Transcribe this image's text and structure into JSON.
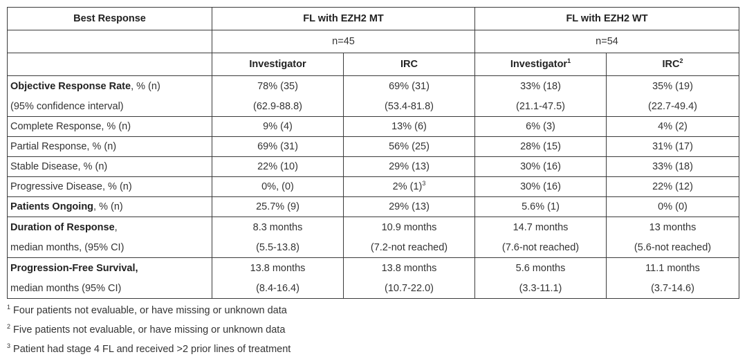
{
  "header": {
    "best_response": "Best Response",
    "group_mt": "FL with EZH2 MT",
    "group_wt": "FL with EZH2 WT",
    "n_mt": "n=45",
    "n_wt": "n=54",
    "investigator": "Investigator",
    "irc": "IRC",
    "sup_wt_investigator": "1",
    "sup_wt_irc": "2"
  },
  "rows": {
    "orr": {
      "label_bold": "Objective Response Rate",
      "label_rest": ", % (n)",
      "sublabel": "(95% confidence interval)",
      "mt_inv": "78% (35)",
      "mt_inv_ci": "(62.9-88.8)",
      "mt_irc": "69% (31)",
      "mt_irc_ci": "(53.4-81.8)",
      "wt_inv": "33% (18)",
      "wt_inv_ci": "(21.1-47.5)",
      "wt_irc": "35% (19)",
      "wt_irc_ci": "(22.7-49.4)"
    },
    "cr": {
      "label": "Complete Response, % (n)",
      "mt_inv": "9% (4)",
      "mt_irc": "13% (6)",
      "wt_inv": "6% (3)",
      "wt_irc": "4% (2)"
    },
    "pr": {
      "label": "Partial Response, % (n)",
      "mt_inv": "69% (31)",
      "mt_irc": "56% (25)",
      "wt_inv": "28% (15)",
      "wt_irc": "31% (17)"
    },
    "sd": {
      "label": "Stable Disease, % (n)",
      "mt_inv": "22% (10)",
      "mt_irc": "29% (13)",
      "wt_inv": "30% (16)",
      "wt_irc": "33% (18)"
    },
    "pd": {
      "label": "Progressive Disease, % (n)",
      "mt_inv": "0%, (0)",
      "mt_irc": "2% (1)",
      "mt_irc_sup": "3",
      "wt_inv": "30% (16)",
      "wt_irc": "22% (12)"
    },
    "po": {
      "label_bold": "Patients Ongoing",
      "label_rest": ", % (n)",
      "mt_inv": "25.7% (9)",
      "mt_irc": "29% (13)",
      "wt_inv": "5.6% (1)",
      "wt_irc": "0% (0)"
    },
    "dor": {
      "label_bold": "Duration of Response",
      "label_rest": ",",
      "sublabel": "median months, (95% CI)",
      "mt_inv": "8.3 months",
      "mt_inv_ci": "(5.5-13.8)",
      "mt_irc": "10.9 months",
      "mt_irc_ci": "(7.2-not reached)",
      "wt_inv": "14.7 months",
      "wt_inv_ci": "(7.6-not reached)",
      "wt_irc": "13 months",
      "wt_irc_ci": "(5.6-not reached)"
    },
    "pfs": {
      "label_bold": "Progression-Free Survival,",
      "sublabel": "median months (95% CI)",
      "mt_inv": "13.8 months",
      "mt_inv_ci": "(8.4-16.4)",
      "mt_irc": "13.8 months",
      "mt_irc_ci": "(10.7-22.0)",
      "wt_inv": "5.6 months",
      "wt_inv_ci": "(3.3-11.1)",
      "wt_irc": "11.1 months",
      "wt_irc_ci": "(3.7-14.6)"
    }
  },
  "footnotes": [
    {
      "num": "1",
      "text": " Four patients not evaluable, or have missing or unknown data"
    },
    {
      "num": "2",
      "text": " Five patients not evaluable, or have missing or unknown data"
    },
    {
      "num": "3",
      "text": " Patient had stage 4 FL and received >2 prior lines of treatment"
    }
  ]
}
